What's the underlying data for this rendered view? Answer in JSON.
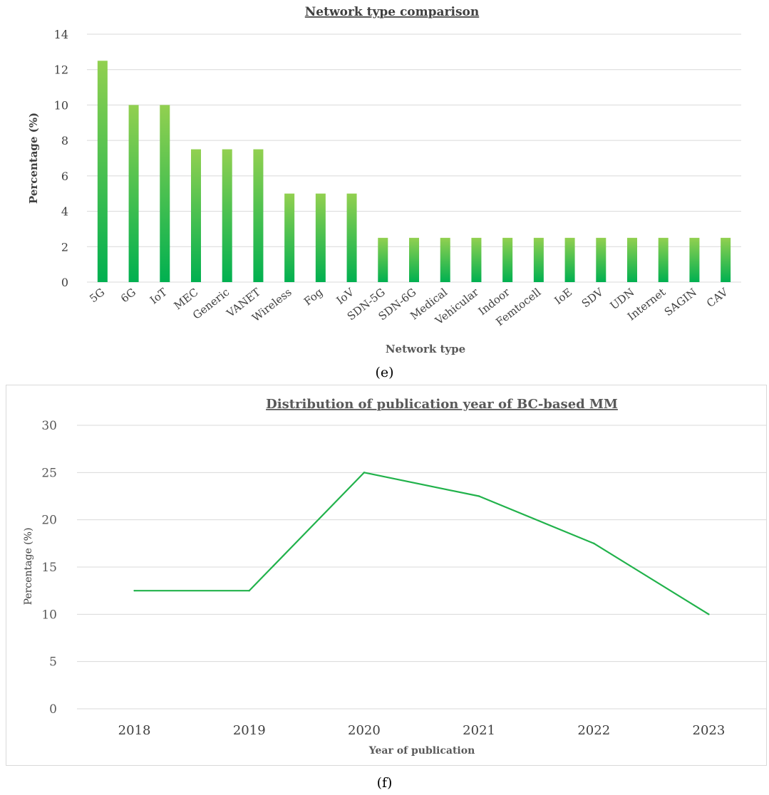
{
  "chart_data": [
    {
      "type": "bar",
      "title": "Network type comparison",
      "xlabel": "Network type",
      "ylabel": "Percentage (%)",
      "ylim": [
        0,
        14
      ],
      "yticks": [
        0,
        2,
        4,
        6,
        8,
        10,
        12,
        14
      ],
      "categories": [
        "5G",
        "6G",
        "IoT",
        "MEC",
        "Generic",
        "VANET",
        "Wireless",
        "Fog",
        "IoV",
        "SDN-5G",
        "SDN-6G",
        "Medical",
        "Vehicular",
        "Indoor",
        "Femtocell",
        "IoE",
        "SDV",
        "UDN",
        "Internet",
        "SAGIN",
        "CAV"
      ],
      "values": [
        12.5,
        10,
        10,
        7.5,
        7.5,
        7.5,
        5,
        5,
        5,
        2.5,
        2.5,
        2.5,
        2.5,
        2.5,
        2.5,
        2.5,
        2.5,
        2.5,
        2.5,
        2.5,
        2.5
      ],
      "grid": true,
      "colors": {
        "bar_top": "#92d050",
        "bar_bottom": "#00b050"
      },
      "caption": "(e)"
    },
    {
      "type": "line",
      "title": "Distribution of publication year of BC-based MM",
      "xlabel": "Year of publication",
      "ylabel": "Percentage (%)",
      "ylim": [
        0,
        30
      ],
      "yticks": [
        0,
        5,
        10,
        15,
        20,
        25,
        30
      ],
      "x": [
        "2018",
        "2019",
        "2020",
        "2021",
        "2022",
        "2023"
      ],
      "values": [
        12.5,
        12.5,
        25,
        22.5,
        17.5,
        10
      ],
      "grid": true,
      "colors": {
        "line": "#21b24b"
      },
      "caption": "(f)"
    }
  ]
}
